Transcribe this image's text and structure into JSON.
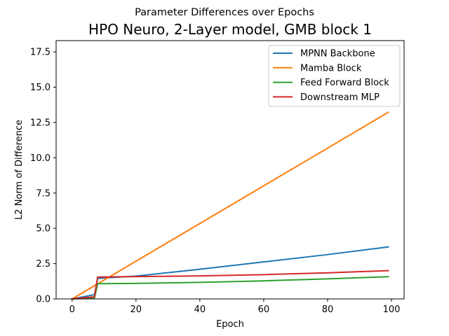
{
  "figure": {
    "suptitle": "Parameter Differences over Epochs"
  },
  "chart_data": {
    "type": "line",
    "title": "HPO Neuro, 2-Layer model, GMB block 1",
    "xlabel": "Epoch",
    "ylabel": "L2 Norm of Difference",
    "xlim": [
      -5,
      103.95
    ],
    "ylim": [
      0,
      18.3
    ],
    "xticks": [
      0,
      20,
      40,
      60,
      80,
      100
    ],
    "yticks": [
      0.0,
      2.5,
      5.0,
      7.5,
      10.0,
      12.5,
      15.0,
      17.5
    ],
    "xtick_labels": [
      "0",
      "20",
      "40",
      "60",
      "80",
      "100"
    ],
    "ytick_labels": [
      "0.0",
      "2.5",
      "5.0",
      "7.5",
      "10.0",
      "12.5",
      "15.0",
      "17.5"
    ],
    "grid": false,
    "legend_position": "upper right",
    "series": [
      {
        "name": "MPNN Backbone",
        "color": "#1f77b4",
        "x": [
          0,
          7,
          8,
          20,
          40,
          60,
          80,
          99
        ],
        "y": [
          0,
          0.3,
          1.45,
          1.62,
          2.1,
          2.62,
          3.14,
          3.68
        ]
      },
      {
        "name": "Mamba Block",
        "color": "#ff7f0e",
        "x": [
          0,
          99
        ],
        "y": [
          0,
          13.22
        ]
      },
      {
        "name": "Feed Forward Block",
        "color": "#2ca02c",
        "x": [
          0,
          7,
          8,
          20,
          40,
          60,
          80,
          99
        ],
        "y": [
          0,
          0.05,
          1.08,
          1.1,
          1.17,
          1.28,
          1.42,
          1.57
        ]
      },
      {
        "name": "Downstream MLP",
        "color": "#d62728",
        "x": [
          0,
          7,
          8,
          20,
          40,
          60,
          80,
          99
        ],
        "y": [
          0,
          0.15,
          1.55,
          1.58,
          1.63,
          1.72,
          1.85,
          2.0
        ]
      }
    ]
  }
}
